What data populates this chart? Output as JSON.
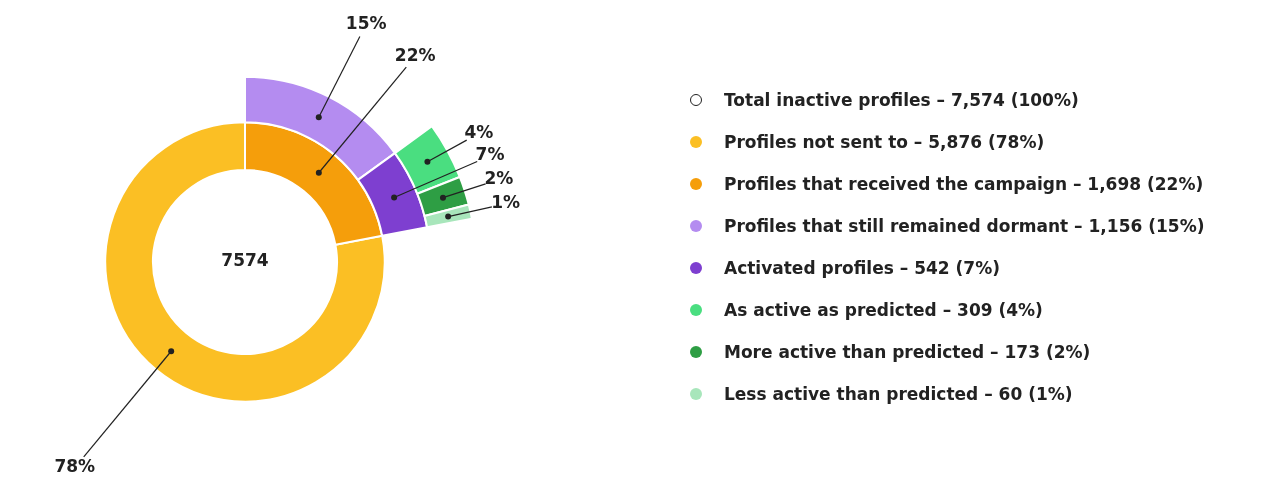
{
  "chart_data": {
    "type": "donut",
    "categories": [
      "Profiles not sent to – 5,876 (78%)",
      "Profiles that received the campaign – 1,698 (22%)",
      "Profiles that still remained dormant – 1,156 (15%)",
      "Activated profiles – 542 (7%)",
      "As active as predicted – 309 (4%)",
      "More active than predicted – 173 (2%)",
      "Less active than predicted – 60 (1%)"
    ],
    "colors": [
      "#fbbf24",
      "#f59e0b",
      "#b48cf0",
      "#7e3fd0",
      "#4ade80",
      "#2e9e44",
      "#a8e6bb"
    ],
    "series": [
      {
        "values": [
          78,
          22,
          null,
          null,
          null,
          null,
          null
        ],
        "value_labels": [
          "78%",
          "22%",
          null,
          null,
          null,
          null,
          null
        ]
      },
      {
        "values": [
          null,
          null,
          15,
          7,
          null,
          null,
          null
        ],
        "value_labels": [
          null,
          null,
          "15%",
          "7%",
          null,
          null,
          null
        ]
      },
      {
        "values": [
          null,
          null,
          null,
          null,
          4,
          2,
          1
        ],
        "value_labels": [
          null,
          null,
          null,
          null,
          "4%",
          "2%",
          "1%"
        ]
      }
    ],
    "annotations": [
      "7574",
      "Total inactive profiles – 7,574 (100%)"
    ],
    "legend": "right"
  }
}
